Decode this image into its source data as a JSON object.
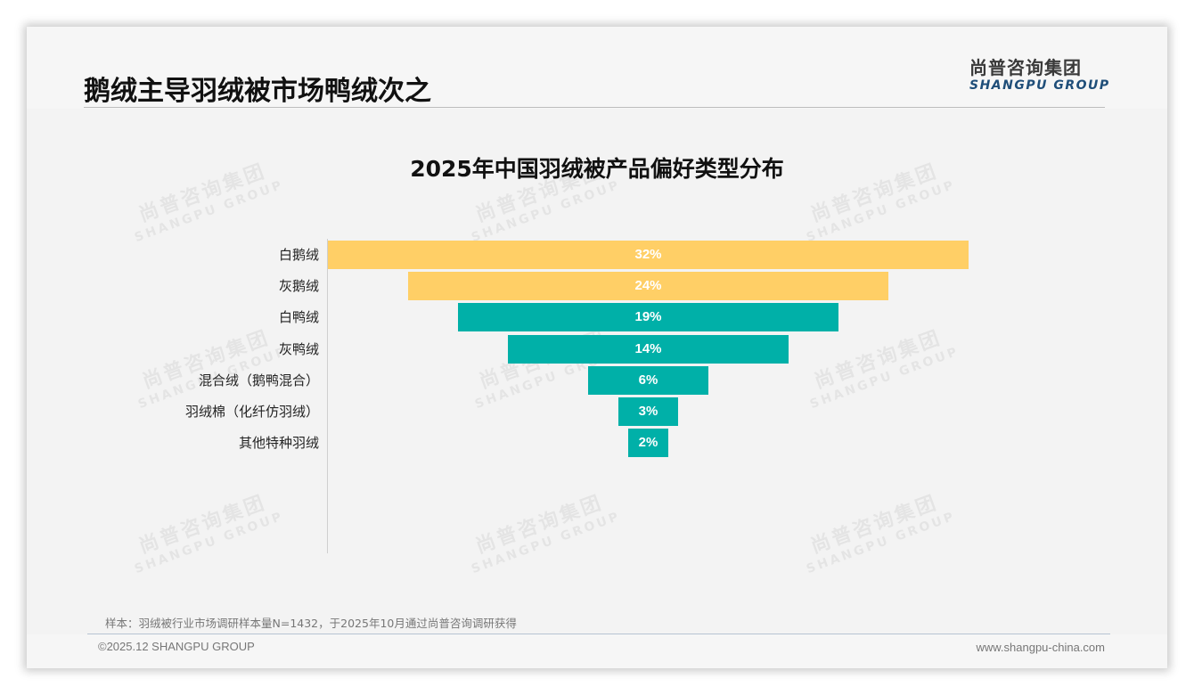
{
  "header": {
    "title": "鹅绒主导羽绒被市场鸭绒次之",
    "logo_cn": "尚普咨询集团",
    "logo_en": "SHANGPU GROUP"
  },
  "watermark": {
    "cn": "尚普咨询集团",
    "en": "SHANGPU GROUP"
  },
  "chart_data": {
    "type": "bar",
    "subtype": "funnel (centered horizontal bars)",
    "title": "2025年中国羽绒被产品偏好类型分布",
    "xlabel": "",
    "ylabel": "",
    "categories": [
      "白鹅绒",
      "灰鹅绒",
      "白鸭绒",
      "灰鸭绒",
      "混合绒（鹅鸭混合）",
      "羽绒棉（化纤仿羽绒）",
      "其他特种羽绒"
    ],
    "values": [
      32,
      24,
      19,
      14,
      6,
      3,
      2
    ],
    "value_labels": [
      "32%",
      "24%",
      "19%",
      "14%",
      "6%",
      "3%",
      "2%"
    ],
    "unit": "%",
    "colors": [
      "#FFCF66",
      "#FFCF66",
      "#00B0A8",
      "#00B0A8",
      "#00B0A8",
      "#00B0A8",
      "#00B0A8"
    ],
    "grid": false,
    "legend": "none"
  },
  "chart": {
    "rows": [
      {
        "label": "白鹅绒",
        "value": 32,
        "text": "32%",
        "color": "#FFCF66"
      },
      {
        "label": "灰鹅绒",
        "value": 24,
        "text": "24%",
        "color": "#FFCF66"
      },
      {
        "label": "白鸭绒",
        "value": 19,
        "text": "19%",
        "color": "#00B0A8"
      },
      {
        "label": "灰鸭绒",
        "value": 14,
        "text": "14%",
        "color": "#00B0A8"
      },
      {
        "label": "混合绒（鹅鸭混合）",
        "value": 6,
        "text": "6%",
        "color": "#00B0A8"
      },
      {
        "label": "羽绒棉（化纤仿羽绒）",
        "value": 3,
        "text": "3%",
        "color": "#00B0A8"
      },
      {
        "label": "其他特种羽绒",
        "value": 2,
        "text": "2%",
        "color": "#00B0A8"
      }
    ]
  },
  "footer": {
    "note": "样本：羽绒被行业市场调研样本量N=1432，于2025年10月通过尚普咨询调研获得",
    "copyright": "©2025.12 SHANGPU GROUP",
    "website": "www.shangpu-china.com"
  },
  "colors": {
    "goose": "#FFCF66",
    "duck": "#00B0A8",
    "brand_blue": "#1f4e79"
  }
}
